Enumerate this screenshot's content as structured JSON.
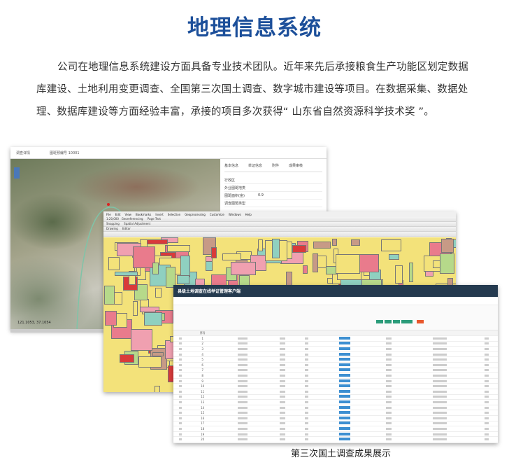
{
  "title": "地理信息系统",
  "paragraph": "公司在地理信息系统建设方面具备专业技术团队。近年来先后承接粮食生产功能区划定数据库建设、土地利用变更调查、全国第三次国土调查、数字城市建设等项目。在数据采集、数据处理、数据库建设等方面经验丰富，承接的项目多次获得“ 山东省自然资源科学技术奖 ”。",
  "caption": "第三次国土调查成果展示",
  "screen1": {
    "header": [
      "调查详情",
      "图斑预编号 10001"
    ],
    "tabs": [
      "基本信息",
      "举证信息",
      "附件",
      "成果审核"
    ],
    "fields": [
      {
        "label": "行政区",
        "value": ""
      },
      {
        "label": "外业图斑地类",
        "value": ""
      },
      {
        "label": "图斑面积(亩)",
        "value": "0.9"
      },
      {
        "label": "调查图斑类型",
        "value": ""
      }
    ],
    "coordinate": "121.1053, 37.1054"
  },
  "screen2": {
    "menu": [
      "File",
      "Edit",
      "View",
      "Bookmarks",
      "Insert",
      "Selection",
      "Geoprocessing",
      "Customize",
      "Windows",
      "Help"
    ],
    "scale": "1:20,000",
    "toolbars": [
      "Georeferencing",
      "Snapping",
      "Spatial Adjustment",
      "Drawing",
      "Editor",
      "Page Text"
    ]
  },
  "screen3": {
    "app_title": "县级土地调查在线举证管理客户端",
    "row_numbers": [
      "1",
      "2",
      "3",
      "4",
      "5",
      "6",
      "7",
      "8",
      "9",
      "10",
      "11",
      "12",
      "13",
      "14",
      "15",
      "16",
      "17",
      "18",
      "19",
      "20",
      "21"
    ],
    "header_col": "序号"
  },
  "colors": {
    "title": "#1c4f9a",
    "nav": "#243a4f",
    "chip": "#3d8fd1"
  }
}
